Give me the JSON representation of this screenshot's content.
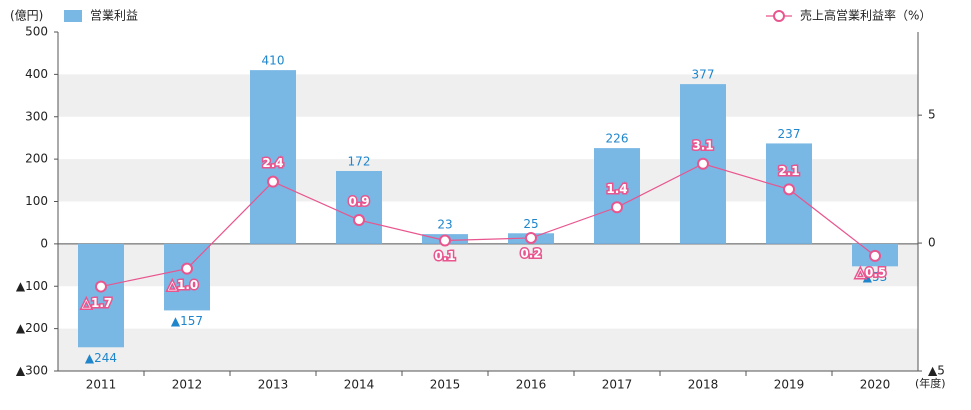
{
  "chart_data": {
    "type": "combo",
    "y_unit": "(億円)",
    "x_unit": "(年度)",
    "categories": [
      "2011",
      "2012",
      "2013",
      "2014",
      "2015",
      "2016",
      "2017",
      "2018",
      "2019",
      "2020"
    ],
    "series": [
      {
        "name": "営業利益",
        "type": "bar",
        "color": "#79b7e5",
        "label_color": "#1f86cc",
        "values": [
          -244,
          -157,
          410,
          172,
          23,
          25,
          226,
          377,
          237,
          -53
        ],
        "value_labels": [
          "▲244",
          "▲157",
          "410",
          "172",
          "23",
          "25",
          "226",
          "377",
          "237",
          "▲53"
        ]
      },
      {
        "name": "売上高営業利益率（%）",
        "type": "line",
        "axis": "y2",
        "color": "#e9558e",
        "values": [
          -1.7,
          -1.0,
          2.4,
          0.9,
          0.1,
          0.2,
          1.4,
          3.1,
          2.1,
          -0.5
        ],
        "value_labels": [
          "△1.7",
          "△1.0",
          "2.4",
          "0.9",
          "0.1",
          "0.2",
          "1.4",
          "3.1",
          "2.1",
          "△0.5"
        ]
      }
    ],
    "ylim": [
      -300,
      500
    ],
    "yticks": [
      {
        "value": -300,
        "label": "▲300"
      },
      {
        "value": -200,
        "label": "▲200"
      },
      {
        "value": -100,
        "label": "▲100"
      },
      0,
      100,
      200,
      300,
      400,
      500
    ],
    "y2lim": [
      -5,
      8.25
    ],
    "y2ticks": [
      {
        "value": -5,
        "label": "▲5"
      },
      0,
      5
    ],
    "grid": "bands"
  }
}
